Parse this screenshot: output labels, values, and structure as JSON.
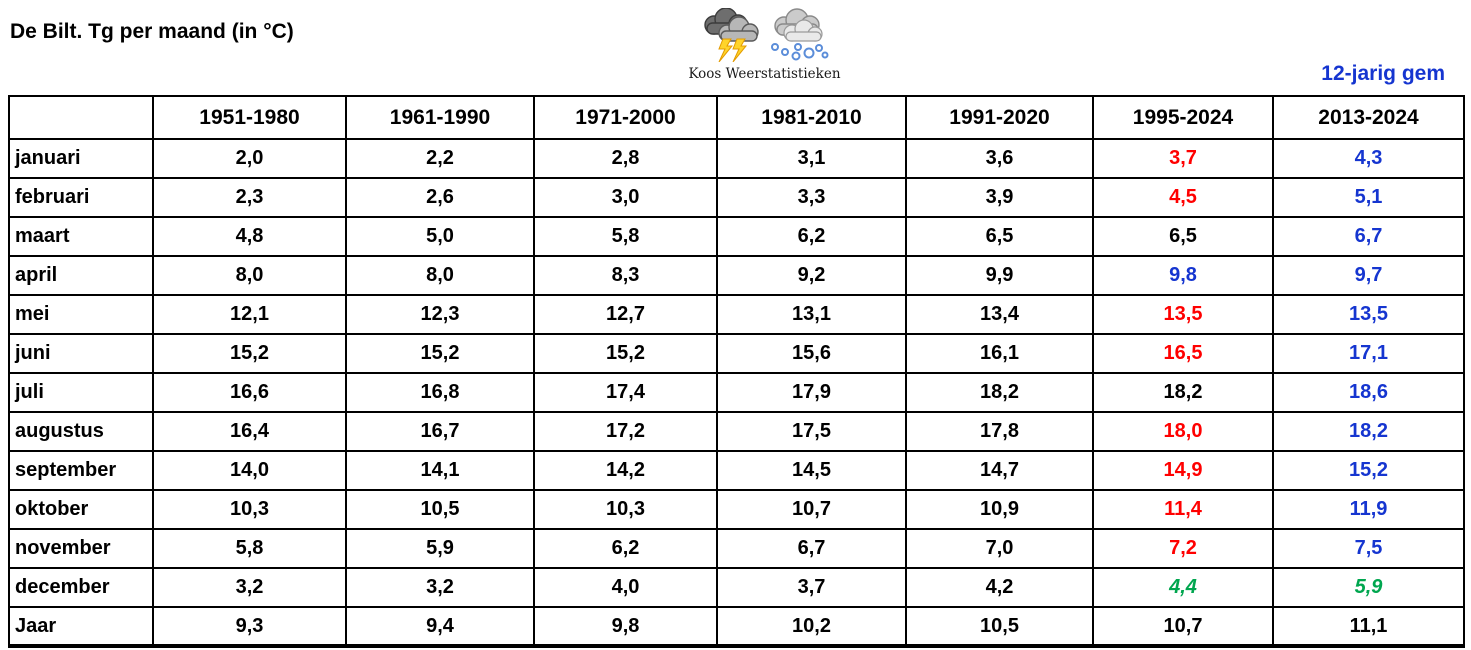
{
  "page": {
    "title": "De Bilt. Tg per maand (in °C)",
    "right_label": "12-jarig gem"
  },
  "logo": {
    "caption": "Koos Weerstatistieken",
    "icons": [
      "storm-cloud-lightning-icon",
      "snow-cloud-icon"
    ]
  },
  "colors": {
    "black": "#000000",
    "red": "#FF0000",
    "blue": "#1535D0",
    "green": "#00A64F"
  },
  "chart_data": {
    "type": "table",
    "title": "De Bilt. Tg per maand (in °C)",
    "unit": "°C",
    "columns": [
      "",
      "1951-1980",
      "1961-1990",
      "1971-2000",
      "1981-2010",
      "1991-2020",
      "1995-2024",
      "2013-2024"
    ],
    "rows": [
      {
        "label": "januari",
        "values": [
          "2,0",
          "2,2",
          "2,8",
          "3,1",
          "3,6",
          "3,7",
          "4,3"
        ],
        "styles": [
          "black",
          "black",
          "black",
          "black",
          "black",
          "red",
          "blue"
        ]
      },
      {
        "label": "februari",
        "values": [
          "2,3",
          "2,6",
          "3,0",
          "3,3",
          "3,9",
          "4,5",
          "5,1"
        ],
        "styles": [
          "black",
          "black",
          "black",
          "black",
          "black",
          "red",
          "blue"
        ]
      },
      {
        "label": "maart",
        "values": [
          "4,8",
          "5,0",
          "5,8",
          "6,2",
          "6,5",
          "6,5",
          "6,7"
        ],
        "styles": [
          "black",
          "black",
          "black",
          "black",
          "black",
          "black",
          "blue"
        ]
      },
      {
        "label": "april",
        "values": [
          "8,0",
          "8,0",
          "8,3",
          "9,2",
          "9,9",
          "9,8",
          "9,7"
        ],
        "styles": [
          "black",
          "black",
          "black",
          "black",
          "black",
          "blue",
          "blue"
        ]
      },
      {
        "label": "mei",
        "values": [
          "12,1",
          "12,3",
          "12,7",
          "13,1",
          "13,4",
          "13,5",
          "13,5"
        ],
        "styles": [
          "black",
          "black",
          "black",
          "black",
          "black",
          "red",
          "blue"
        ]
      },
      {
        "label": "juni",
        "values": [
          "15,2",
          "15,2",
          "15,2",
          "15,6",
          "16,1",
          "16,5",
          "17,1"
        ],
        "styles": [
          "black",
          "black",
          "black",
          "black",
          "black",
          "red",
          "blue"
        ]
      },
      {
        "label": "juli",
        "values": [
          "16,6",
          "16,8",
          "17,4",
          "17,9",
          "18,2",
          "18,2",
          "18,6"
        ],
        "styles": [
          "black",
          "black",
          "black",
          "black",
          "black",
          "black",
          "blue"
        ]
      },
      {
        "label": "augustus",
        "values": [
          "16,4",
          "16,7",
          "17,2",
          "17,5",
          "17,8",
          "18,0",
          "18,2"
        ],
        "styles": [
          "black",
          "black",
          "black",
          "black",
          "black",
          "red",
          "blue"
        ]
      },
      {
        "label": "september",
        "values": [
          "14,0",
          "14,1",
          "14,2",
          "14,5",
          "14,7",
          "14,9",
          "15,2"
        ],
        "styles": [
          "black",
          "black",
          "black",
          "black",
          "black",
          "red",
          "blue"
        ]
      },
      {
        "label": "oktober",
        "values": [
          "10,3",
          "10,5",
          "10,3",
          "10,7",
          "10,9",
          "11,4",
          "11,9"
        ],
        "styles": [
          "black",
          "black",
          "black",
          "black",
          "black",
          "red",
          "blue"
        ]
      },
      {
        "label": "november",
        "values": [
          "5,8",
          "5,9",
          "6,2",
          "6,7",
          "7,0",
          "7,2",
          "7,5"
        ],
        "styles": [
          "black",
          "black",
          "black",
          "black",
          "black",
          "red",
          "blue"
        ]
      },
      {
        "label": "december",
        "values": [
          "3,2",
          "3,2",
          "4,0",
          "3,7",
          "4,2",
          "4,4",
          "5,9"
        ],
        "styles": [
          "black",
          "black",
          "black",
          "black",
          "black",
          "green",
          "green"
        ]
      },
      {
        "label": "Jaar",
        "values": [
          "9,3",
          "9,4",
          "9,8",
          "10,2",
          "10,5",
          "10,7",
          "11,1"
        ],
        "styles": [
          "black",
          "black",
          "black",
          "black",
          "black",
          "black",
          "black"
        ]
      }
    ]
  }
}
